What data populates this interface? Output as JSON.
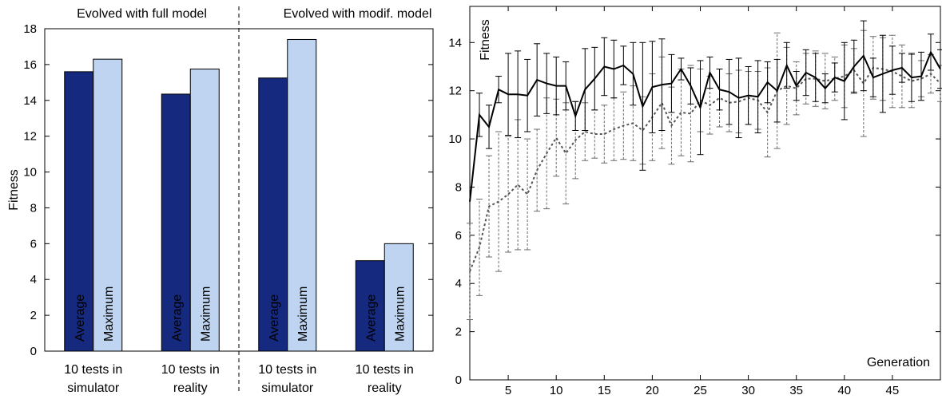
{
  "chart_data": [
    {
      "type": "bar",
      "ylabel": "Fitness",
      "ylim": [
        0,
        18
      ],
      "yticks": [
        0,
        2,
        4,
        6,
        8,
        10,
        12,
        14,
        16,
        18
      ],
      "group_titles": [
        "Evolved with full model",
        "Evolved with modif. model"
      ],
      "categories": [
        [
          "10 tests in",
          "simulator"
        ],
        [
          "10 tests in",
          "reality"
        ],
        [
          "10 tests in",
          "simulator"
        ],
        [
          "10 tests in",
          "reality"
        ]
      ],
      "series": [
        {
          "name": "Average",
          "color": "#15297f",
          "text_color": "#ffffff",
          "values": [
            15.6,
            14.35,
            15.25,
            5.05
          ]
        },
        {
          "name": "Maximum",
          "color": "#bed4f0",
          "text_color": "#000000",
          "values": [
            16.3,
            15.75,
            17.4,
            6.0
          ]
        }
      ],
      "grid": false
    },
    {
      "type": "line",
      "xlabel": "Generation",
      "ylabel": "Fitness",
      "xlim": [
        1,
        50
      ],
      "ylim": [
        0,
        15.5
      ],
      "xticks": [
        5,
        10,
        15,
        20,
        25,
        30,
        35,
        40,
        45
      ],
      "yticks": [
        0,
        2,
        4,
        6,
        8,
        10,
        12,
        14
      ],
      "grid": false,
      "series": [
        {
          "name": "",
          "style": "solid",
          "color": "#000000",
          "x": [
            1,
            2,
            3,
            4,
            5,
            6,
            7,
            8,
            9,
            10,
            11,
            12,
            13,
            14,
            15,
            16,
            17,
            18,
            19,
            20,
            21,
            22,
            23,
            24,
            25,
            26,
            27,
            28,
            29,
            30,
            31,
            32,
            33,
            34,
            35,
            36,
            37,
            38,
            39,
            40,
            41,
            42,
            43,
            44,
            45,
            46,
            47,
            48,
            49,
            50
          ],
          "y": [
            7.4,
            11.0,
            10.5,
            12.05,
            11.85,
            11.85,
            11.8,
            12.45,
            12.3,
            12.2,
            12.2,
            10.95,
            12.05,
            12.5,
            13.0,
            12.9,
            13.05,
            12.7,
            11.35,
            12.15,
            12.25,
            12.3,
            12.9,
            12.2,
            11.3,
            12.75,
            12.05,
            11.95,
            11.7,
            11.8,
            11.75,
            12.35,
            12.0,
            13.05,
            12.2,
            12.75,
            12.55,
            12.1,
            12.55,
            12.4,
            13.0,
            13.45,
            12.55,
            12.7,
            12.85,
            12.95,
            12.55,
            12.6,
            13.6,
            12.9
          ],
          "err": [
            0,
            0.9,
            0.9,
            0.55,
            1.7,
            1.8,
            1.5,
            1.5,
            1.25,
            1.2,
            1.0,
            0.6,
            1.7,
            1.3,
            1.2,
            1.2,
            0.8,
            1.3,
            2.65,
            1.9,
            1.9,
            1.2,
            0.45,
            0.75,
            1.95,
            0.65,
            0.85,
            1.35,
            1.65,
            1.2,
            1.5,
            0.85,
            1.3,
            0.95,
            0.6,
            0.95,
            1.0,
            0.6,
            0.6,
            1.6,
            1.1,
            1.45,
            0.8,
            1.6,
            1.0,
            0.6,
            1.0,
            1.0,
            0.75,
            0.8
          ]
        },
        {
          "name": "",
          "style": "dashed",
          "color": "#555555",
          "x": [
            1,
            2,
            3,
            4,
            5,
            6,
            7,
            8,
            9,
            10,
            11,
            12,
            13,
            14,
            15,
            16,
            17,
            18,
            19,
            20,
            21,
            22,
            23,
            24,
            25,
            26,
            27,
            28,
            29,
            30,
            31,
            32,
            33,
            34,
            35,
            36,
            37,
            38,
            39,
            40,
            41,
            42,
            43,
            44,
            45,
            46,
            47,
            48,
            49,
            50
          ],
          "y": [
            4.5,
            5.5,
            7.2,
            7.4,
            7.7,
            8.1,
            7.7,
            8.7,
            9.4,
            10.05,
            9.4,
            9.95,
            10.3,
            10.2,
            10.2,
            10.4,
            10.55,
            10.65,
            10.35,
            10.9,
            11.5,
            10.55,
            11.1,
            11.05,
            11.6,
            11.4,
            11.7,
            11.5,
            11.55,
            11.7,
            11.6,
            11.1,
            12.0,
            12.2,
            12.1,
            12.5,
            12.5,
            12.4,
            12.5,
            12.6,
            12.85,
            12.3,
            12.95,
            12.9,
            12.8,
            12.6,
            12.4,
            12.5,
            12.7,
            12.3
          ],
          "err": [
            2.0,
            2.0,
            2.1,
            2.9,
            2.4,
            2.7,
            2.3,
            1.7,
            2.3,
            1.6,
            2.1,
            1.6,
            1.2,
            1.0,
            1.2,
            1.3,
            1.4,
            1.55,
            1.4,
            1.8,
            1.9,
            1.6,
            1.8,
            2.0,
            1.3,
            1.2,
            1.2,
            1.2,
            1.3,
            1.1,
            1.2,
            1.85,
            2.4,
            1.6,
            1.1,
            1.05,
            1.15,
            1.15,
            0.9,
            1.3,
            0.9,
            2.2,
            1.3,
            1.3,
            1.5,
            1.3,
            1.1,
            0.75,
            0.8,
            0.75
          ]
        }
      ]
    }
  ]
}
